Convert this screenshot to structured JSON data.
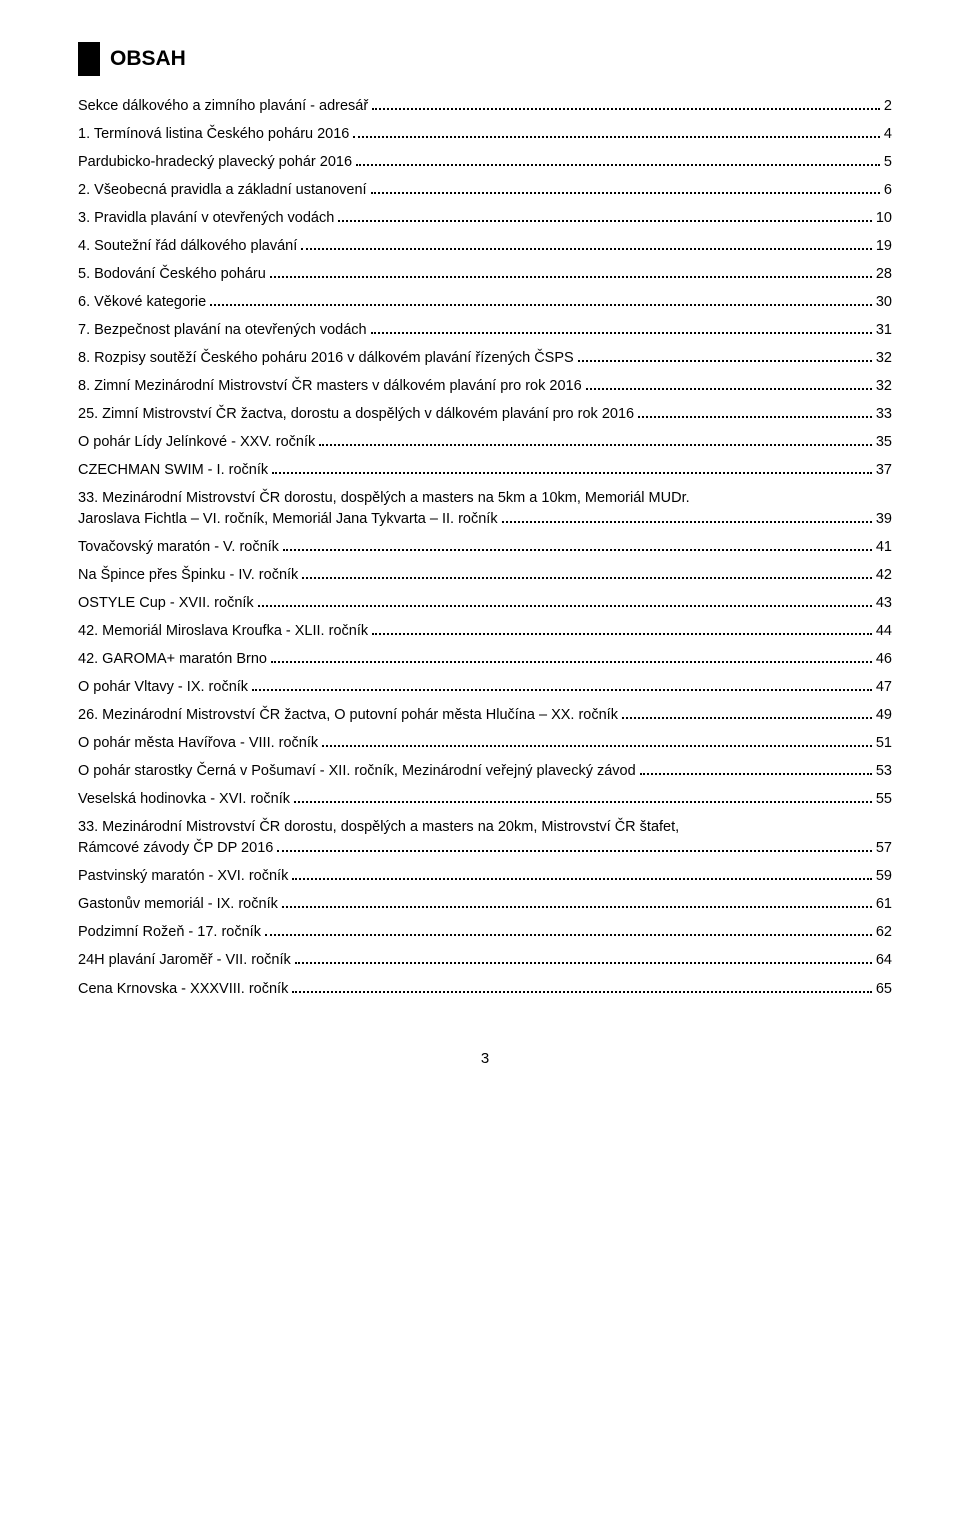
{
  "heading": "OBSAH",
  "page_number": "3",
  "entries": [
    {
      "label": "Sekce dálkového a zimního plavání - adresář",
      "pg": " 2"
    },
    {
      "label": "1. Termínová listina Českého poháru 2016",
      "pg": " 4"
    },
    {
      "label": "Pardubicko-hradecký plavecký pohár 2016",
      "pg": " 5"
    },
    {
      "label": "2. Všeobecná pravidla a základní ustanovení",
      "pg": " 6"
    },
    {
      "label": "3. Pravidla plavání v otevřených vodách",
      "pg": "10"
    },
    {
      "label": "4. Soutežní řád dálkového plavání",
      "pg": "19"
    },
    {
      "label": "5. Bodování Českého poháru",
      "pg": "28"
    },
    {
      "label": "6. Věkové kategorie",
      "pg": "30"
    },
    {
      "label": "7. Bezpečnost plavání na otevřených vodách",
      "pg": "31"
    },
    {
      "label": "8. Rozpisy soutěží Českého poháru 2016 v dálkovém plavání řízených ČSPS",
      "pg": "32"
    },
    {
      "label": "8. Zimní Mezinárodní Mistrovství ČR masters v dálkovém plavání pro rok 2016",
      "pg": "32"
    },
    {
      "label": "25. Zimní Mistrovství ČR žactva, dorostu a dospělých v dálkovém plavání pro rok 2016",
      "pg": "33"
    },
    {
      "label": "O pohár Lídy Jelínkové - XXV. ročník",
      "pg": "35"
    },
    {
      "label": "CZECHMAN SWIM - I. ročník",
      "pg": "37"
    },
    {
      "multi": true,
      "line1": "33. Mezinárodní Mistrovství ČR dorostu, dospělých a masters na 5km a 10km, Memoriál MUDr.",
      "label": "Jaroslava Fichtla – VI. ročník, Memoriál Jana Tykvarta – II. ročník",
      "pg": "39"
    },
    {
      "label": "Tovačovský maratón - V. ročník",
      "pg": "41"
    },
    {
      "label": "Na Špince přes Špinku - IV. ročník",
      "pg": "42"
    },
    {
      "label": "OSTYLE Cup - XVII. ročník",
      "pg": "43"
    },
    {
      "label": "42. Memoriál Miroslava Kroufka - XLII. ročník",
      "pg": "44"
    },
    {
      "label": "42. GAROMA+ maratón Brno",
      "pg": "46"
    },
    {
      "label": "O pohár Vltavy - IX. ročník",
      "pg": "47"
    },
    {
      "label": "26. Mezinárodní Mistrovství ČR žactva, O putovní pohár města Hlučína – XX. ročník",
      "pg": "49"
    },
    {
      "label": "O pohár města Havířova - VIII. ročník",
      "pg": "51"
    },
    {
      "label": "O pohár starostky Černá v Pošumaví - XII. ročník, Mezinárodní veřejný plavecký závod",
      "pg": "53"
    },
    {
      "label": "Veselská hodinovka - XVI. ročník",
      "pg": "55"
    },
    {
      "multi": true,
      "line1": "33. Mezinárodní Mistrovství ČR dorostu, dospělých a masters na 20km, Mistrovství ČR štafet,",
      "label": "Rámcové závody ČP DP 2016",
      "pg": "57"
    },
    {
      "label": "Pastvinský maratón - XVI. ročník",
      "pg": "59"
    },
    {
      "label": "Gastonův memoriál - IX. ročník",
      "pg": "61"
    },
    {
      "label": "Podzimní Rožeň - 17. ročník",
      "pg": "62"
    },
    {
      "label": "24H plavání Jaroměř - VII. ročník",
      "pg": "64"
    },
    {
      "label": "Cena Krnovska - XXXVIII. ročník",
      "pg": "65"
    }
  ]
}
